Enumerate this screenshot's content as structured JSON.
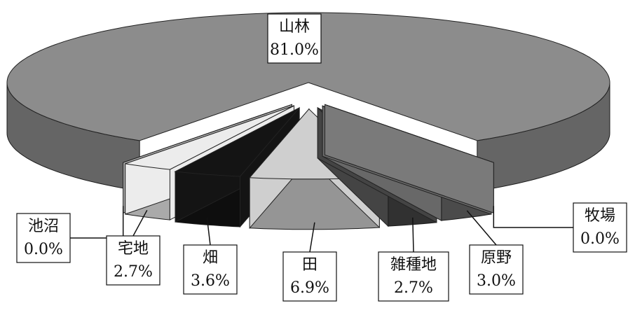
{
  "chart_data": {
    "type": "pie",
    "categories": [
      "山林",
      "池沼",
      "宅地",
      "畑",
      "田",
      "雑種地",
      "原野",
      "牧場"
    ],
    "values": [
      81.0,
      0.0,
      2.7,
      3.6,
      6.9,
      2.7,
      3.0,
      0.0
    ],
    "value_labels": [
      "81.0%",
      "0.0%",
      "2.7%",
      "3.6%",
      "6.9%",
      "2.7%",
      "3.0%",
      "0.0%"
    ],
    "colors": [
      "#8c8c8c",
      "#b0b0b0",
      "#ececec",
      "#141414",
      "#cfcfcf",
      "#444444",
      "#686868",
      "#7a7a7a"
    ]
  }
}
